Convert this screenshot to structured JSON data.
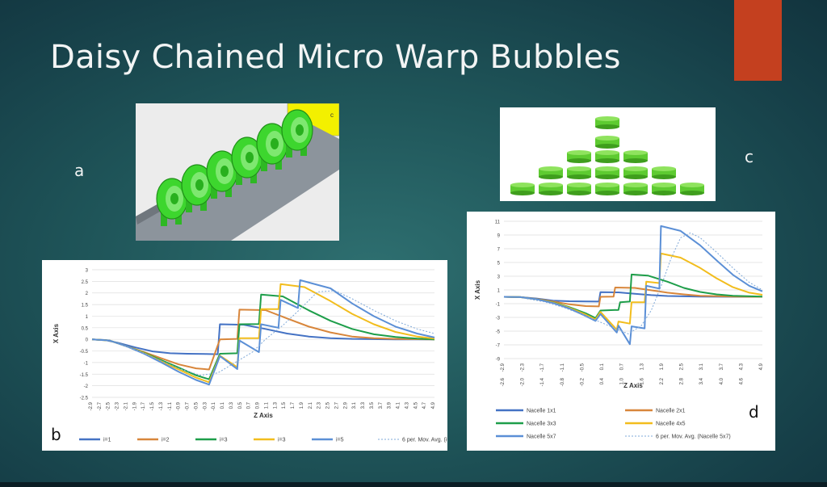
{
  "slide": {
    "title": "Daisy Chained Micro Warp Bubbles",
    "labels": {
      "a": "a",
      "b": "b",
      "c": "c",
      "d": "d"
    },
    "accent_color": "#c4401f"
  },
  "image_a": {
    "corner_glyph": "c",
    "color": "#3dd62e"
  },
  "image_c": {
    "color": "#5ecb31",
    "rows": [
      1,
      1,
      3,
      5,
      7
    ]
  },
  "chart_data": [
    {
      "type": "line",
      "ylabel": "X Axis",
      "xlabel": "Z Axis",
      "ylim": [
        -2.5,
        3
      ],
      "yticks": [
        3,
        2.5,
        2,
        1.5,
        1,
        0.5,
        0,
        -0.5,
        -1,
        -1.5,
        -2,
        -2.5
      ],
      "xticks": [
        "-2.9",
        "-2.7",
        "-2.5",
        "-2.3",
        "-2.1",
        "-1.9",
        "-1.7",
        "-1.5",
        "-1.3",
        "-1.1",
        "-0.9",
        "-0.7",
        "-0.5",
        "-0.3",
        "-0.1",
        "0.1",
        "0.3",
        "0.5",
        "0.7",
        "0.9",
        "1.1",
        "1.3",
        "1.5",
        "1.7",
        "1.9",
        "2.1",
        "2.3",
        "2.5",
        "2.7",
        "2.9",
        "3.1",
        "3.3",
        "3.5",
        "3.7",
        "3.9",
        "4.1",
        "4.3",
        "4.5",
        "4.7",
        "4.9"
      ],
      "xlim": [
        -3.0,
        4.9
      ],
      "grid": true,
      "legend_position": "bottom",
      "series": [
        {
          "name": "i=1",
          "color": "#4472c4",
          "dashed": false,
          "points": [
            [
              -3.0,
              0
            ],
            [
              -2.7,
              -0.03
            ],
            [
              -2.4,
              -0.15
            ],
            [
              -2.0,
              -0.35
            ],
            [
              -1.6,
              -0.52
            ],
            [
              -1.2,
              -0.6
            ],
            [
              -0.8,
              -0.62
            ],
            [
              -0.4,
              -0.63
            ],
            [
              -0.1,
              -0.64
            ],
            [
              -0.05,
              0.65
            ],
            [
              0.5,
              0.63
            ],
            [
              1.0,
              0.45
            ],
            [
              1.5,
              0.25
            ],
            [
              2.0,
              0.12
            ],
            [
              2.5,
              0.05
            ],
            [
              3.0,
              0.02
            ],
            [
              4.0,
              0
            ],
            [
              4.9,
              0
            ]
          ]
        },
        {
          "name": "i=2",
          "color": "#d8863b",
          "dashed": false,
          "points": [
            [
              -3.0,
              0
            ],
            [
              -2.6,
              -0.05
            ],
            [
              -2.2,
              -0.3
            ],
            [
              -1.8,
              -0.55
            ],
            [
              -1.4,
              -0.82
            ],
            [
              -1.0,
              -1.08
            ],
            [
              -0.6,
              -1.25
            ],
            [
              -0.3,
              -1.3
            ],
            [
              -0.05,
              0.0
            ],
            [
              0.35,
              0.02
            ],
            [
              0.4,
              1.28
            ],
            [
              1.0,
              1.26
            ],
            [
              1.5,
              0.9
            ],
            [
              2.0,
              0.55
            ],
            [
              2.5,
              0.3
            ],
            [
              3.0,
              0.12
            ],
            [
              3.5,
              0.05
            ],
            [
              4.0,
              0.02
            ],
            [
              4.9,
              0
            ]
          ]
        },
        {
          "name": "i=3",
          "color": "#1e9e4a",
          "dashed": false,
          "points": [
            [
              -3.0,
              0
            ],
            [
              -2.6,
              -0.05
            ],
            [
              -2.2,
              -0.3
            ],
            [
              -1.8,
              -0.58
            ],
            [
              -1.4,
              -0.9
            ],
            [
              -1.0,
              -1.22
            ],
            [
              -0.6,
              -1.55
            ],
            [
              -0.3,
              -1.72
            ],
            [
              -0.05,
              -0.62
            ],
            [
              0.35,
              -0.6
            ],
            [
              0.4,
              0.65
            ],
            [
              0.85,
              0.66
            ],
            [
              0.9,
              1.93
            ],
            [
              1.4,
              1.85
            ],
            [
              2.0,
              1.25
            ],
            [
              2.5,
              0.8
            ],
            [
              3.0,
              0.45
            ],
            [
              3.5,
              0.22
            ],
            [
              4.0,
              0.1
            ],
            [
              4.5,
              0.03
            ],
            [
              4.9,
              0
            ]
          ]
        },
        {
          "name": "i=3",
          "color": "#f2bd1d",
          "dashed": false,
          "points": [
            [
              -3.0,
              0
            ],
            [
              -2.6,
              -0.05
            ],
            [
              -2.2,
              -0.3
            ],
            [
              -1.8,
              -0.6
            ],
            [
              -1.4,
              -0.95
            ],
            [
              -1.0,
              -1.3
            ],
            [
              -0.6,
              -1.65
            ],
            [
              -0.3,
              -1.85
            ],
            [
              -0.05,
              -0.7
            ],
            [
              0.35,
              -1.2
            ],
            [
              0.4,
              0.05
            ],
            [
              0.85,
              0.05
            ],
            [
              0.9,
              1.3
            ],
            [
              1.3,
              1.3
            ],
            [
              1.35,
              2.38
            ],
            [
              1.9,
              2.25
            ],
            [
              2.5,
              1.65
            ],
            [
              3.0,
              1.1
            ],
            [
              3.5,
              0.65
            ],
            [
              4.0,
              0.32
            ],
            [
              4.5,
              0.12
            ],
            [
              4.9,
              0.03
            ]
          ]
        },
        {
          "name": "i=5",
          "color": "#5b8fd6",
          "dashed": false,
          "points": [
            [
              -3.0,
              0
            ],
            [
              -2.6,
              -0.05
            ],
            [
              -2.2,
              -0.3
            ],
            [
              -1.8,
              -0.62
            ],
            [
              -1.4,
              -1.0
            ],
            [
              -1.0,
              -1.4
            ],
            [
              -0.6,
              -1.75
            ],
            [
              -0.3,
              -1.95
            ],
            [
              -0.05,
              -0.72
            ],
            [
              0.35,
              -1.28
            ],
            [
              0.4,
              -0.05
            ],
            [
              0.85,
              -0.55
            ],
            [
              0.9,
              0.65
            ],
            [
              1.3,
              0.5
            ],
            [
              1.35,
              1.7
            ],
            [
              1.75,
              1.35
            ],
            [
              1.8,
              2.55
            ],
            [
              2.5,
              2.2
            ],
            [
              3.0,
              1.55
            ],
            [
              3.5,
              1.0
            ],
            [
              4.0,
              0.55
            ],
            [
              4.5,
              0.25
            ],
            [
              4.9,
              0.08
            ]
          ]
        },
        {
          "name": "6 per. Mov. Avg. (i=5)",
          "color": "#7fa8d8",
          "dashed": true,
          "points": [
            [
              -2.4,
              -0.2
            ],
            [
              -2.0,
              -0.45
            ],
            [
              -1.5,
              -0.85
            ],
            [
              -1.0,
              -1.25
            ],
            [
              -0.5,
              -1.55
            ],
            [
              -0.1,
              -1.45
            ],
            [
              0.3,
              -1.0
            ],
            [
              0.7,
              -0.55
            ],
            [
              1.0,
              0.0
            ],
            [
              1.4,
              0.6
            ],
            [
              1.8,
              1.3
            ],
            [
              2.2,
              2.05
            ],
            [
              2.6,
              2.1
            ],
            [
              3.0,
              1.75
            ],
            [
              3.5,
              1.25
            ],
            [
              4.0,
              0.8
            ],
            [
              4.5,
              0.45
            ],
            [
              4.9,
              0.25
            ]
          ]
        }
      ]
    },
    {
      "type": "line",
      "ylabel": "X Axis",
      "xlabel": "Z Axis",
      "ylim": [
        -9,
        11
      ],
      "yticks": [
        11,
        9,
        7,
        5,
        3,
        1,
        -1,
        -3,
        -5,
        -7,
        -9
      ],
      "xticks": [
        "-2.9",
        "-2.3",
        "-1.7",
        "-1.1",
        "-0.5",
        "0.1",
        "0.7",
        "1.3",
        "1.9",
        "2.5",
        "3.1",
        "3.7",
        "4.3",
        "4.9",
        "-2.6",
        "-2.0",
        "-1.4",
        "-0.8",
        "-0.2",
        "0.4",
        "1.0",
        "1.6",
        "2.2",
        "2.8",
        "3.4",
        "4.0",
        "4.6"
      ],
      "xlim": [
        -3.0,
        4.9
      ],
      "grid": true,
      "legend_position": "bottom",
      "series": [
        {
          "name": "Nacelle 1x1",
          "color": "#4472c4",
          "dashed": false,
          "points": [
            [
              -3.0,
              0
            ],
            [
              -2.5,
              -0.05
            ],
            [
              -2.0,
              -0.25
            ],
            [
              -1.5,
              -0.55
            ],
            [
              -1.0,
              -0.65
            ],
            [
              -0.5,
              -0.68
            ],
            [
              -0.1,
              -0.7
            ],
            [
              -0.05,
              0.68
            ],
            [
              0.5,
              0.65
            ],
            [
              1.0,
              0.45
            ],
            [
              1.5,
              0.25
            ],
            [
              2.0,
              0.12
            ],
            [
              3.0,
              0.03
            ],
            [
              4.0,
              0
            ],
            [
              4.9,
              0
            ]
          ]
        },
        {
          "name": "Nacelle 2x1",
          "color": "#d8863b",
          "dashed": false,
          "points": [
            [
              -3.0,
              0
            ],
            [
              -2.5,
              -0.05
            ],
            [
              -2.0,
              -0.3
            ],
            [
              -1.5,
              -0.7
            ],
            [
              -1.0,
              -1.1
            ],
            [
              -0.5,
              -1.35
            ],
            [
              -0.1,
              -1.4
            ],
            [
              -0.05,
              0.0
            ],
            [
              0.35,
              0.02
            ],
            [
              0.4,
              1.35
            ],
            [
              1.0,
              1.3
            ],
            [
              1.5,
              0.95
            ],
            [
              2.0,
              0.6
            ],
            [
              2.5,
              0.35
            ],
            [
              3.0,
              0.15
            ],
            [
              4.0,
              0.03
            ],
            [
              4.9,
              0
            ]
          ]
        },
        {
          "name": "Nacelle 3x3",
          "color": "#1e9e4a",
          "dashed": false,
          "points": [
            [
              -3.0,
              0
            ],
            [
              -2.5,
              -0.05
            ],
            [
              -2.0,
              -0.35
            ],
            [
              -1.5,
              -0.8
            ],
            [
              -1.0,
              -1.5
            ],
            [
              -0.5,
              -2.4
            ],
            [
              -0.2,
              -3.1
            ],
            [
              -0.05,
              -2.0
            ],
            [
              0.5,
              -1.9
            ],
            [
              0.55,
              -0.8
            ],
            [
              0.85,
              -0.7
            ],
            [
              0.9,
              3.25
            ],
            [
              1.4,
              3.1
            ],
            [
              2.0,
              2.2
            ],
            [
              2.5,
              1.3
            ],
            [
              3.0,
              0.7
            ],
            [
              3.5,
              0.35
            ],
            [
              4.0,
              0.15
            ],
            [
              4.9,
              0.02
            ]
          ]
        },
        {
          "name": "Nacelle 4x5",
          "color": "#f2bd1d",
          "dashed": false,
          "points": [
            [
              -3.0,
              0
            ],
            [
              -2.5,
              -0.05
            ],
            [
              -2.0,
              -0.35
            ],
            [
              -1.5,
              -0.85
            ],
            [
              -1.0,
              -1.6
            ],
            [
              -0.5,
              -2.6
            ],
            [
              -0.2,
              -3.3
            ],
            [
              -0.05,
              -2.2
            ],
            [
              0.45,
              -4.8
            ],
            [
              0.5,
              -3.6
            ],
            [
              0.85,
              -3.9
            ],
            [
              0.9,
              -0.8
            ],
            [
              1.3,
              -0.8
            ],
            [
              1.35,
              2.2
            ],
            [
              1.75,
              2.0
            ],
            [
              1.8,
              6.3
            ],
            [
              2.4,
              5.7
            ],
            [
              3.0,
              4.2
            ],
            [
              3.5,
              2.7
            ],
            [
              4.0,
              1.4
            ],
            [
              4.5,
              0.6
            ],
            [
              4.9,
              0.3
            ]
          ]
        },
        {
          "name": "Nacelle 5x7",
          "color": "#5b8fd6",
          "dashed": false,
          "points": [
            [
              -3.0,
              0
            ],
            [
              -2.5,
              -0.05
            ],
            [
              -2.0,
              -0.35
            ],
            [
              -1.5,
              -0.9
            ],
            [
              -1.0,
              -1.7
            ],
            [
              -0.5,
              -2.8
            ],
            [
              -0.2,
              -3.5
            ],
            [
              -0.05,
              -2.5
            ],
            [
              0.45,
              -5.2
            ],
            [
              0.5,
              -4.2
            ],
            [
              0.85,
              -6.9
            ],
            [
              0.9,
              -4.3
            ],
            [
              1.3,
              -4.6
            ],
            [
              1.35,
              1.6
            ],
            [
              1.75,
              1.2
            ],
            [
              1.8,
              10.3
            ],
            [
              2.4,
              9.6
            ],
            [
              3.0,
              7.5
            ],
            [
              3.5,
              5.3
            ],
            [
              4.0,
              3.2
            ],
            [
              4.5,
              1.6
            ],
            [
              4.9,
              0.8
            ]
          ]
        },
        {
          "name": "6 per. Mov. Avg. (Nacelle 5x7)",
          "color": "#7fa8d8",
          "dashed": true,
          "points": [
            [
              -2.4,
              -0.2
            ],
            [
              -1.8,
              -0.7
            ],
            [
              -1.2,
              -1.5
            ],
            [
              -0.6,
              -2.6
            ],
            [
              -0.1,
              -3.6
            ],
            [
              0.4,
              -4.6
            ],
            [
              0.8,
              -5.4
            ],
            [
              1.2,
              -4.2
            ],
            [
              1.5,
              -2.0
            ],
            [
              1.8,
              1.5
            ],
            [
              2.1,
              5.5
            ],
            [
              2.4,
              8.6
            ],
            [
              2.7,
              9.3
            ],
            [
              3.0,
              8.6
            ],
            [
              3.5,
              6.5
            ],
            [
              4.0,
              4.2
            ],
            [
              4.5,
              2.1
            ],
            [
              4.9,
              1.0
            ]
          ]
        }
      ]
    }
  ]
}
